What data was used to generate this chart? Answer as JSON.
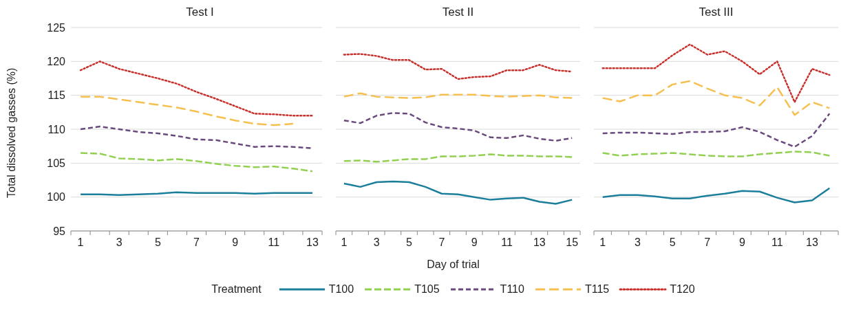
{
  "chart_data": [
    {
      "type": "line",
      "title": "Test I",
      "ylabel": "Total dissolved gasses (%)",
      "legend": "bottom",
      "legend_title": "Treatment",
      "x": [
        1,
        2,
        3,
        4,
        5,
        6,
        7,
        8,
        9,
        10,
        11,
        12,
        13
      ],
      "xlim": [
        0.5,
        13.5
      ],
      "xticks": [
        {
          "value": 0.5,
          "label": null
        },
        1,
        {
          "value": 1.5,
          "label": null
        },
        {
          "value": 2.5,
          "label": null
        },
        3,
        {
          "value": 3.5,
          "label": null
        },
        {
          "value": 4.5,
          "label": null
        },
        5,
        {
          "value": 5.5,
          "label": null
        },
        {
          "value": 6.5,
          "label": null
        },
        7,
        {
          "value": 7.5,
          "label": null
        },
        {
          "value": 8.5,
          "label": null
        },
        9,
        {
          "value": 9.5,
          "label": null
        },
        {
          "value": 10.5,
          "label": null
        },
        11,
        {
          "value": 11.5,
          "label": null
        },
        {
          "value": 12.5,
          "label": null
        },
        13,
        {
          "value": 13.5,
          "label": null
        }
      ],
      "ylim": [
        95,
        125
      ],
      "yticks": [
        95,
        100,
        105,
        110,
        115,
        120,
        125
      ],
      "grid": "y",
      "series": [
        {
          "name": "T100",
          "color": "#1b7f9c",
          "line_style": "solid",
          "values": [
            100.4,
            100.4,
            100.3,
            100.4,
            100.5,
            100.7,
            100.6,
            100.6,
            100.6,
            100.5,
            100.6,
            100.6,
            100.6
          ]
        },
        {
          "name": "T105",
          "color": "#92d050",
          "line_style": "dashed",
          "values": [
            106.5,
            106.4,
            105.7,
            105.6,
            105.4,
            105.6,
            105.3,
            104.9,
            104.6,
            104.4,
            104.5,
            104.2,
            103.8
          ]
        },
        {
          "name": "T110",
          "color": "#6a4a7c",
          "line_style": "dashed",
          "values": [
            110.0,
            110.4,
            110.0,
            109.6,
            109.4,
            109.0,
            108.5,
            108.4,
            107.9,
            107.4,
            107.5,
            107.4,
            107.2
          ]
        },
        {
          "name": "T115",
          "color": "#f5c04f",
          "line_style": "dashed",
          "values": [
            114.8,
            114.8,
            114.4,
            114.0,
            113.6,
            113.2,
            112.6,
            111.9,
            111.3,
            110.8,
            110.6,
            110.8,
            null
          ]
        },
        {
          "name": "T120",
          "color": "#c9302c",
          "line_style": "dotted",
          "values": [
            118.7,
            120.0,
            118.9,
            118.2,
            117.5,
            116.7,
            115.5,
            114.5,
            113.4,
            112.3,
            112.2,
            112.0,
            112.0
          ]
        }
      ]
    },
    {
      "type": "line",
      "title": "Test II",
      "xlabel": "Day of trial",
      "tick_labels": "x",
      "x": [
        1,
        2,
        3,
        4,
        5,
        6,
        7,
        8,
        9,
        10,
        11,
        12,
        13,
        14,
        15
      ],
      "xlim": [
        0.5,
        15.5
      ],
      "xticks": [
        {
          "value": 0.5,
          "label": null
        },
        1,
        {
          "value": 1.5,
          "label": null
        },
        {
          "value": 2.5,
          "label": null
        },
        3,
        {
          "value": 3.5,
          "label": null
        },
        {
          "value": 4.5,
          "label": null
        },
        5,
        {
          "value": 5.5,
          "label": null
        },
        {
          "value": 6.5,
          "label": null
        },
        7,
        {
          "value": 7.5,
          "label": null
        },
        {
          "value": 8.5,
          "label": null
        },
        9,
        {
          "value": 9.5,
          "label": null
        },
        {
          "value": 10.5,
          "label": null
        },
        11,
        {
          "value": 11.5,
          "label": null
        },
        {
          "value": 12.5,
          "label": null
        },
        13,
        {
          "value": 13.5,
          "label": null
        },
        {
          "value": 14.5,
          "label": null
        },
        15,
        {
          "value": 15.5,
          "label": null
        }
      ],
      "ylim": [
        95,
        125
      ],
      "yticks": [
        95,
        100,
        105,
        110,
        115,
        120,
        125
      ],
      "grid": "y",
      "series": [
        {
          "color": "#1b7f9c",
          "line_style": "solid",
          "values": [
            102.0,
            101.5,
            102.2,
            102.3,
            102.2,
            101.5,
            100.5,
            100.4,
            100.0,
            99.6,
            99.8,
            99.9,
            99.3,
            99.0,
            99.6
          ]
        },
        {
          "color": "#92d050",
          "line_style": "dashed",
          "values": [
            105.3,
            105.4,
            105.2,
            105.4,
            105.6,
            105.6,
            106.0,
            106.0,
            106.1,
            106.3,
            106.1,
            106.1,
            106.0,
            106.0,
            105.9
          ]
        },
        {
          "color": "#6a4a7c",
          "line_style": "dashed",
          "values": [
            111.3,
            110.9,
            112.0,
            112.4,
            112.3,
            111.0,
            110.3,
            110.1,
            109.8,
            108.8,
            108.7,
            109.1,
            108.6,
            108.3,
            108.7
          ]
        },
        {
          "color": "#f5c04f",
          "line_style": "dashed",
          "values": [
            114.8,
            115.3,
            114.8,
            114.7,
            114.6,
            114.7,
            115.1,
            115.1,
            115.1,
            114.9,
            114.8,
            114.9,
            115.0,
            114.7,
            114.6
          ]
        },
        {
          "color": "#c9302c",
          "line_style": "dotted",
          "values": [
            121.0,
            121.1,
            120.8,
            120.2,
            120.2,
            118.8,
            118.9,
            117.4,
            117.7,
            117.8,
            118.7,
            118.7,
            119.5,
            118.7,
            118.5
          ]
        }
      ]
    },
    {
      "type": "line",
      "title": "Test III",
      "tick_labels": "x",
      "x": [
        1,
        2,
        3,
        4,
        5,
        6,
        7,
        8,
        9,
        10,
        11,
        12,
        13,
        14
      ],
      "xlim": [
        0.5,
        14.5
      ],
      "xticks": [
        {
          "value": 0.5,
          "label": null
        },
        1,
        {
          "value": 1.5,
          "label": null
        },
        {
          "value": 2.5,
          "label": null
        },
        3,
        {
          "value": 3.5,
          "label": null
        },
        {
          "value": 4.5,
          "label": null
        },
        5,
        {
          "value": 5.5,
          "label": null
        },
        {
          "value": 6.5,
          "label": null
        },
        7,
        {
          "value": 7.5,
          "label": null
        },
        {
          "value": 8.5,
          "label": null
        },
        9,
        {
          "value": 9.5,
          "label": null
        },
        {
          "value": 10.5,
          "label": null
        },
        11,
        {
          "value": 11.5,
          "label": null
        },
        {
          "value": 12.5,
          "label": null
        },
        13,
        {
          "value": 13.5,
          "label": null
        },
        {
          "value": 14.5,
          "label": null
        }
      ],
      "ylim": [
        95,
        125
      ],
      "yticks": [
        95,
        100,
        105,
        110,
        115,
        120,
        125
      ],
      "grid": "y",
      "series": [
        {
          "color": "#1b7f9c",
          "line_style": "solid",
          "values": [
            100.0,
            100.3,
            100.3,
            100.1,
            99.8,
            99.8,
            100.2,
            100.5,
            100.9,
            100.8,
            99.9,
            99.2,
            99.5,
            101.3
          ]
        },
        {
          "color": "#92d050",
          "line_style": "dashed",
          "values": [
            106.5,
            106.1,
            106.3,
            106.4,
            106.5,
            106.3,
            106.1,
            106.0,
            106.0,
            106.3,
            106.5,
            106.7,
            106.6,
            106.1
          ]
        },
        {
          "color": "#6a4a7c",
          "line_style": "dashed",
          "values": [
            109.4,
            109.5,
            109.5,
            109.4,
            109.3,
            109.6,
            109.6,
            109.7,
            110.3,
            109.6,
            108.4,
            107.4,
            109.0,
            112.3
          ]
        },
        {
          "color": "#f5c04f",
          "line_style": "dashed",
          "values": [
            114.6,
            114.1,
            115.0,
            115.0,
            116.6,
            117.1,
            116.0,
            115.0,
            114.6,
            113.5,
            116.2,
            112.1,
            114.0,
            113.1
          ]
        },
        {
          "color": "#c9302c",
          "line_style": "dotted",
          "values": [
            119.0,
            119.0,
            119.0,
            119.0,
            120.9,
            122.5,
            121.0,
            121.5,
            120.0,
            118.1,
            120.0,
            114.0,
            118.9,
            118.0
          ]
        }
      ]
    }
  ]
}
